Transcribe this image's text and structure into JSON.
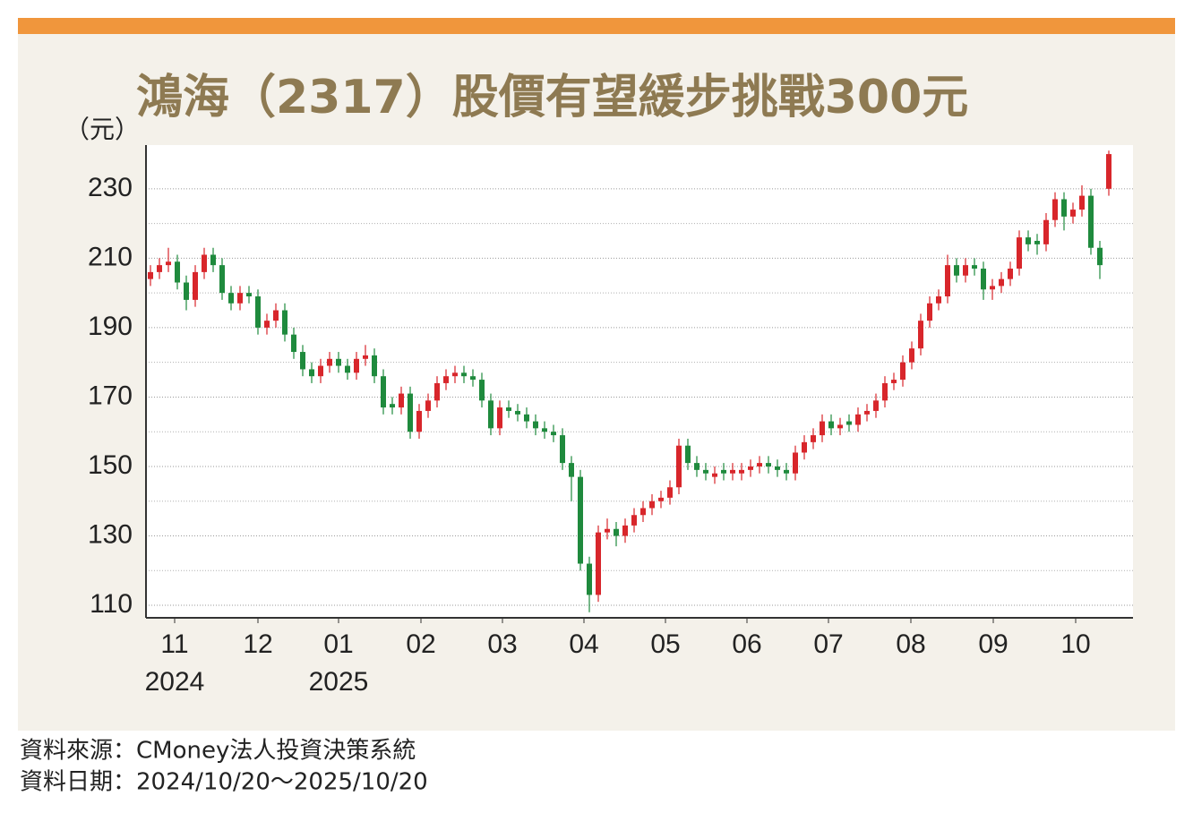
{
  "chart_data": {
    "type": "candlestick",
    "title": "鴻海（2317）股價有望緩步挑戰300元",
    "y_unit": "（元）",
    "source": "資料來源：CMoney法人投資決策系統",
    "date_range": "資料日期：2024/10/20～2025/10/20",
    "up_color": "#d8262b",
    "down_color": "#1f8a3d",
    "open": [
      204,
      206,
      208,
      209,
      203,
      198,
      206,
      211,
      208,
      200,
      197,
      200,
      199,
      190,
      192,
      195,
      188,
      183,
      178,
      176,
      179,
      181,
      179,
      177,
      181,
      182,
      176,
      168,
      167,
      171,
      160,
      166,
      169,
      174,
      176,
      177,
      176,
      175,
      169,
      161,
      167,
      166,
      165,
      163,
      161,
      160,
      159,
      151,
      147,
      122,
      113,
      131,
      132,
      130,
      133,
      136,
      138,
      140,
      141,
      144,
      156,
      151,
      149,
      147,
      149,
      148,
      148,
      149,
      150,
      151,
      150,
      149,
      148,
      154,
      157,
      159,
      163,
      161,
      163,
      162,
      165,
      166,
      169,
      174,
      175,
      180,
      184,
      192,
      197,
      199,
      208,
      205,
      208,
      207,
      201,
      202,
      204,
      207,
      216,
      215,
      214,
      221,
      227,
      222,
      224,
      228,
      213,
      230
    ],
    "high": [
      208,
      210,
      213,
      211,
      205,
      208,
      213,
      213,
      210,
      202,
      202,
      202,
      201,
      194,
      197,
      197,
      190,
      185,
      180,
      181,
      183,
      183,
      181,
      183,
      185,
      184,
      178,
      170,
      173,
      173,
      168,
      171,
      176,
      178,
      179,
      179,
      178,
      177,
      171,
      169,
      169,
      168,
      167,
      165,
      163,
      162,
      161,
      153,
      149,
      124,
      133,
      135,
      134,
      135,
      138,
      140,
      142,
      143,
      146,
      158,
      158,
      153,
      151,
      150,
      151,
      151,
      151,
      152,
      153,
      153,
      152,
      151,
      156,
      159,
      161,
      165,
      165,
      164,
      165,
      167,
      168,
      171,
      176,
      177,
      182,
      186,
      194,
      199,
      201,
      211,
      210,
      210,
      210,
      209,
      204,
      206,
      209,
      218,
      218,
      217,
      223,
      229,
      229,
      226,
      231,
      230,
      215,
      241
    ],
    "low": [
      202,
      204,
      206,
      201,
      195,
      196,
      204,
      206,
      198,
      195,
      195,
      197,
      188,
      188,
      190,
      186,
      181,
      176,
      174,
      174,
      177,
      177,
      175,
      175,
      179,
      174,
      165,
      165,
      165,
      158,
      158,
      164,
      167,
      172,
      174,
      174,
      173,
      167,
      159,
      159,
      164,
      163,
      161,
      159,
      158,
      157,
      149,
      140,
      120,
      108,
      111,
      129,
      127,
      128,
      131,
      134,
      136,
      138,
      139,
      142,
      149,
      147,
      146,
      145,
      146,
      146,
      146,
      147,
      148,
      148,
      147,
      146,
      146,
      152,
      155,
      157,
      159,
      159,
      160,
      160,
      163,
      164,
      167,
      172,
      173,
      178,
      182,
      190,
      195,
      197,
      203,
      203,
      205,
      198,
      198,
      200,
      202,
      205,
      212,
      211,
      212,
      219,
      218,
      220,
      222,
      211,
      204,
      228
    ],
    "close": [
      206,
      208,
      209,
      203,
      198,
      206,
      211,
      208,
      200,
      197,
      200,
      199,
      190,
      192,
      195,
      188,
      183,
      178,
      176,
      179,
      181,
      179,
      177,
      181,
      182,
      176,
      167,
      167,
      171,
      160,
      166,
      169,
      174,
      176,
      177,
      176,
      175,
      169,
      161,
      167,
      166,
      165,
      163,
      161,
      160,
      159,
      151,
      147,
      122,
      113,
      131,
      132,
      130,
      133,
      136,
      138,
      140,
      141,
      144,
      156,
      151,
      149,
      148,
      148,
      148,
      149,
      149,
      150,
      151,
      150,
      149,
      148,
      154,
      157,
      159,
      163,
      161,
      162,
      162,
      165,
      166,
      169,
      174,
      175,
      180,
      184,
      192,
      197,
      199,
      208,
      205,
      208,
      207,
      201,
      202,
      204,
      207,
      216,
      214,
      214,
      221,
      227,
      222,
      224,
      228,
      213,
      208,
      240
    ],
    "xlim": [
      -0.5,
      109.7
    ],
    "xticks": [
      {
        "value": 2.7,
        "label": "11"
      },
      {
        "value": 12,
        "label": "12"
      },
      {
        "value": 21,
        "label": "01"
      },
      {
        "value": 30.2,
        "label": "02"
      },
      {
        "value": 39.3,
        "label": "03"
      },
      {
        "value": 48.4,
        "label": "04"
      },
      {
        "value": 57.5,
        "label": "05"
      },
      {
        "value": 66.6,
        "label": "06"
      },
      {
        "value": 75.7,
        "label": "07"
      },
      {
        "value": 84.9,
        "label": "08"
      },
      {
        "value": 94.1,
        "label": "09"
      },
      {
        "value": 103.3,
        "label": "10"
      }
    ],
    "x_year_labels": [
      {
        "value": 2.7,
        "label": "2024"
      },
      {
        "value": 21,
        "label": "2025"
      }
    ],
    "ylim": [
      106.4,
      242.6
    ],
    "yticks": [
      110,
      130,
      150,
      170,
      190,
      210,
      230
    ],
    "minor_yticks": [
      120,
      140,
      160,
      180,
      200,
      220
    ],
    "grid": true
  }
}
